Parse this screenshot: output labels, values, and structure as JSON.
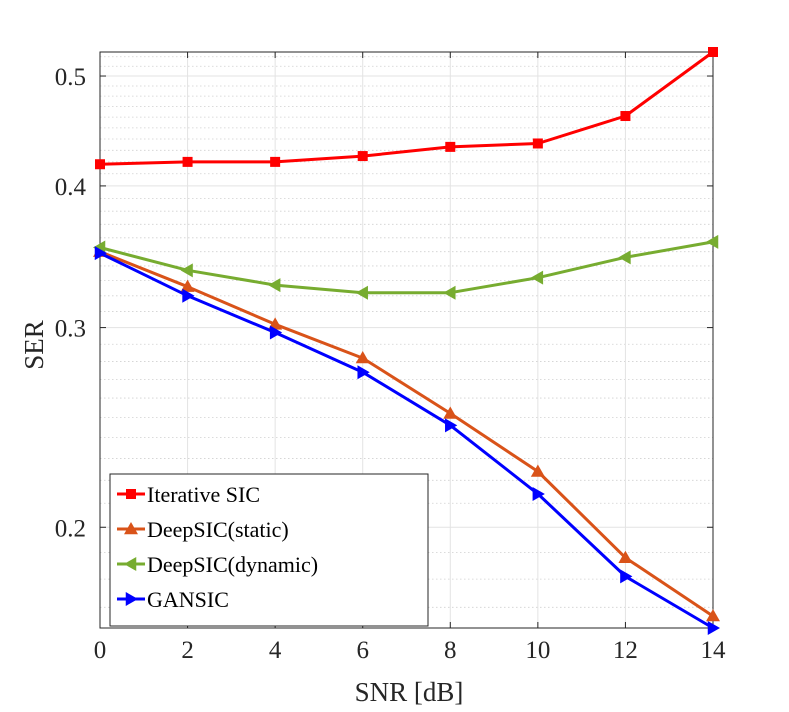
{
  "chart_data": {
    "type": "line",
    "title": "",
    "xlabel": "SNR [dB]",
    "ylabel": "SER",
    "yscale": "log",
    "xlim": [
      0,
      14
    ],
    "ylim": [
      0.163,
      0.525
    ],
    "grid": true,
    "x": [
      0,
      2,
      4,
      6,
      8,
      10,
      12,
      14
    ],
    "xticks": [
      0,
      2,
      4,
      6,
      8,
      10,
      12,
      14
    ],
    "xtick_labels": [
      "0",
      "2",
      "4",
      "6",
      "8",
      "10",
      "12",
      "14"
    ],
    "yticks": [
      0.2,
      0.3,
      0.4,
      0.5
    ],
    "ytick_labels": [
      "0.2",
      "0.3",
      "0.4",
      "0.5"
    ],
    "legend_position": "bottom-left",
    "series": [
      {
        "name": "Iterative SIC",
        "color": "#ff0000",
        "marker": "square",
        "values": [
          0.418,
          0.42,
          0.42,
          0.425,
          0.433,
          0.436,
          0.461,
          0.525
        ]
      },
      {
        "name": "DeepSIC(static)",
        "color": "#d95319",
        "marker": "triangle-up",
        "values": [
          0.35,
          0.326,
          0.302,
          0.282,
          0.252,
          0.224,
          0.188,
          0.167
        ]
      },
      {
        "name": "DeepSIC(dynamic)",
        "color": "#77ac30",
        "marker": "triangle-left",
        "values": [
          0.353,
          0.337,
          0.327,
          0.322,
          0.322,
          0.332,
          0.346,
          0.357
        ]
      },
      {
        "name": "GANSIC",
        "color": "#0000ff",
        "marker": "triangle-right",
        "values": [
          0.349,
          0.32,
          0.297,
          0.274,
          0.246,
          0.214,
          0.181,
          0.163
        ]
      }
    ]
  }
}
